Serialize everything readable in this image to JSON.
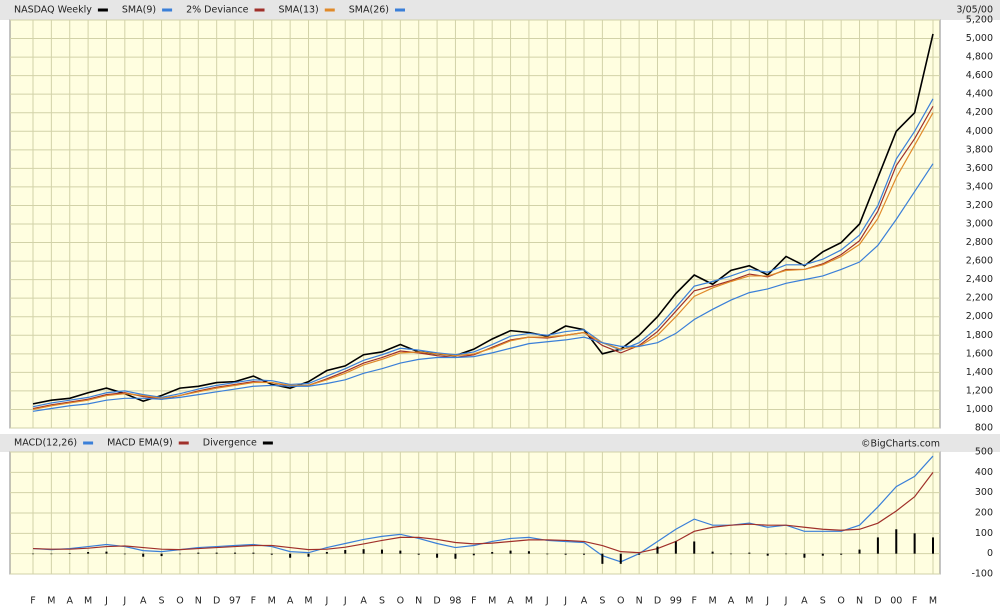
{
  "chart_data": [
    {
      "type": "line",
      "date": "3/05/00",
      "ylim": [
        800,
        5200
      ],
      "yticks": [
        800,
        {
          "value": 1000,
          "label": "1,000"
        },
        {
          "value": 1200,
          "label": "1,200"
        },
        {
          "value": 1400,
          "label": "1,400"
        },
        {
          "value": 1600,
          "label": "1,600"
        },
        {
          "value": 1800,
          "label": "1,800"
        },
        {
          "value": 2000,
          "label": "2,000"
        },
        {
          "value": 2200,
          "label": "2,200"
        },
        {
          "value": 2400,
          "label": "2,400"
        },
        {
          "value": 2600,
          "label": "2,600"
        },
        {
          "value": 2800,
          "label": "2,800"
        },
        {
          "value": 3000,
          "label": "3,000"
        },
        {
          "value": 3200,
          "label": "3,200"
        },
        {
          "value": 3400,
          "label": "3,400"
        },
        {
          "value": 3600,
          "label": "3,600"
        },
        {
          "value": 3800,
          "label": "3,800"
        },
        {
          "value": 4000,
          "label": "4,000"
        },
        {
          "value": 4200,
          "label": "4,200"
        },
        {
          "value": 4400,
          "label": "4,400"
        },
        {
          "value": 4600,
          "label": "4,600"
        },
        {
          "value": 4800,
          "label": "4,800"
        },
        {
          "value": 5000,
          "label": "5,000"
        },
        {
          "value": 5200,
          "label": "5,200"
        }
      ],
      "grid": true,
      "series": [
        {
          "name": "NASDAQ Weekly",
          "color": "#000000",
          "values": [
            1060,
            1100,
            1120,
            1180,
            1230,
            1170,
            1090,
            1150,
            1230,
            1250,
            1290,
            1300,
            1360,
            1270,
            1230,
            1300,
            1420,
            1470,
            1590,
            1620,
            1700,
            1620,
            1600,
            1580,
            1650,
            1760,
            1850,
            1830,
            1790,
            1900,
            1860,
            1600,
            1650,
            1800,
            2000,
            2250,
            2450,
            2350,
            2500,
            2550,
            2450,
            2650,
            2550,
            2700,
            2800,
            3000,
            3500,
            4000,
            4200,
            5050
          ]
        },
        {
          "name": "SMA(9)",
          "color": "#3a7fd8",
          "values": [
            1030,
            1070,
            1100,
            1130,
            1180,
            1200,
            1160,
            1130,
            1170,
            1220,
            1260,
            1290,
            1320,
            1310,
            1270,
            1280,
            1360,
            1440,
            1530,
            1590,
            1660,
            1640,
            1610,
            1590,
            1620,
            1700,
            1790,
            1820,
            1800,
            1840,
            1860,
            1720,
            1640,
            1720,
            1880,
            2100,
            2330,
            2380,
            2440,
            2510,
            2480,
            2560,
            2560,
            2620,
            2720,
            2880,
            3200,
            3700,
            4000,
            4350
          ]
        },
        {
          "name": "2% Deviance",
          "color": "#a0302a",
          "values": [
            1010,
            1050,
            1080,
            1110,
            1160,
            1180,
            1140,
            1110,
            1150,
            1200,
            1240,
            1270,
            1300,
            1290,
            1250,
            1260,
            1330,
            1410,
            1500,
            1560,
            1630,
            1610,
            1580,
            1560,
            1590,
            1670,
            1750,
            1780,
            1770,
            1800,
            1830,
            1690,
            1610,
            1690,
            1840,
            2060,
            2280,
            2330,
            2390,
            2460,
            2430,
            2510,
            2510,
            2570,
            2670,
            2820,
            3140,
            3630,
            3920,
            4270
          ]
        },
        {
          "name": "SMA(13)",
          "color": "#e08a2a",
          "values": [
            1000,
            1040,
            1070,
            1100,
            1150,
            1170,
            1150,
            1120,
            1150,
            1190,
            1230,
            1260,
            1290,
            1290,
            1260,
            1260,
            1320,
            1390,
            1480,
            1540,
            1610,
            1620,
            1600,
            1580,
            1600,
            1660,
            1740,
            1780,
            1780,
            1800,
            1830,
            1720,
            1650,
            1680,
            1800,
            2000,
            2220,
            2310,
            2380,
            2440,
            2440,
            2500,
            2510,
            2560,
            2650,
            2780,
            3060,
            3500,
            3850,
            4200
          ]
        },
        {
          "name": "SMA(26)",
          "color": "#3a7fd8",
          "values": [
            980,
            1010,
            1040,
            1060,
            1100,
            1120,
            1120,
            1110,
            1130,
            1160,
            1190,
            1220,
            1250,
            1260,
            1250,
            1250,
            1280,
            1320,
            1390,
            1440,
            1500,
            1540,
            1560,
            1560,
            1570,
            1610,
            1660,
            1710,
            1730,
            1750,
            1780,
            1720,
            1680,
            1680,
            1720,
            1820,
            1970,
            2080,
            2180,
            2260,
            2300,
            2360,
            2400,
            2440,
            2510,
            2590,
            2770,
            3050,
            3350,
            3650
          ]
        }
      ]
    },
    {
      "type": "line",
      "source": "©BigCharts.com",
      "categories": [
        "F",
        "M",
        "A",
        "M",
        "J",
        "J",
        "A",
        "S",
        "O",
        "N",
        "D",
        "97",
        "F",
        "M",
        "A",
        "M",
        "J",
        "J",
        "A",
        "S",
        "O",
        "N",
        "D",
        "98",
        "F",
        "M",
        "A",
        "M",
        "J",
        "J",
        "A",
        "S",
        "O",
        "N",
        "D",
        "99",
        "F",
        "M",
        "A",
        "M",
        "J",
        "J",
        "A",
        "S",
        "O",
        "N",
        "D",
        "00",
        "F",
        "M"
      ],
      "ylim": [
        -100,
        500
      ],
      "yticks": [
        -100,
        0,
        100,
        200,
        300,
        400,
        500
      ],
      "grid": true,
      "series": [
        {
          "name": "MACD(12,26)",
          "color": "#3a7fd8",
          "values": [
            25,
            20,
            25,
            35,
            45,
            35,
            15,
            10,
            20,
            30,
            35,
            40,
            45,
            35,
            10,
            5,
            30,
            50,
            70,
            85,
            95,
            75,
            50,
            30,
            40,
            60,
            75,
            80,
            65,
            60,
            55,
            -10,
            -40,
            0,
            60,
            120,
            170,
            140,
            140,
            150,
            130,
            140,
            110,
            110,
            110,
            140,
            230,
            330,
            380,
            480
          ]
        },
        {
          "name": "MACD EMA(9)",
          "color": "#a0302a",
          "values": [
            25,
            22,
            22,
            27,
            35,
            38,
            30,
            22,
            20,
            25,
            30,
            35,
            40,
            40,
            30,
            20,
            22,
            32,
            48,
            65,
            80,
            80,
            70,
            55,
            48,
            52,
            60,
            68,
            68,
            65,
            60,
            40,
            10,
            5,
            25,
            60,
            110,
            130,
            140,
            145,
            140,
            140,
            130,
            120,
            115,
            120,
            150,
            210,
            280,
            400
          ]
        },
        {
          "name": "Divergence",
          "color": "#000000",
          "type": "bar",
          "values": [
            0,
            -2,
            3,
            8,
            10,
            -3,
            -15,
            -12,
            0,
            5,
            5,
            5,
            5,
            -5,
            -20,
            -15,
            8,
            18,
            22,
            20,
            15,
            -5,
            -20,
            -25,
            -8,
            8,
            15,
            12,
            -3,
            -5,
            -5,
            -50,
            -50,
            -5,
            35,
            60,
            60,
            10,
            0,
            5,
            -10,
            0,
            -20,
            -10,
            -5,
            20,
            80,
            120,
            100,
            80
          ]
        }
      ]
    }
  ]
}
